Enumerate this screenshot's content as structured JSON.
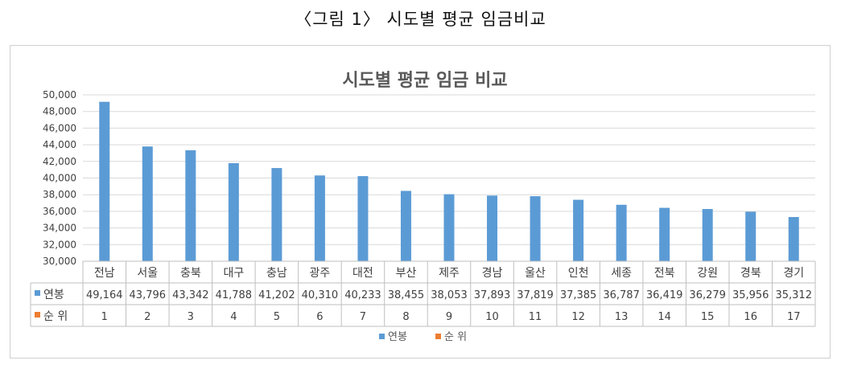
{
  "caption": "〈그림 1〉 시도별 평균 임금비교",
  "chart_data": {
    "type": "bar",
    "title": "시도별 평균 임금 비교",
    "categories": [
      "전남",
      "서울",
      "충북",
      "대구",
      "충남",
      "광주",
      "대전",
      "부산",
      "제주",
      "경남",
      "울산",
      "인천",
      "세종",
      "전북",
      "강원",
      "경북",
      "경기"
    ],
    "series": [
      {
        "name": "연봉",
        "values": [
          49164,
          43796,
          43342,
          41788,
          41202,
          40310,
          40233,
          38455,
          38053,
          37893,
          37819,
          37385,
          36787,
          36419,
          36279,
          35956,
          35312
        ],
        "color": "#5b9bd5"
      },
      {
        "name": "순 위",
        "values": [
          1,
          2,
          3,
          4,
          5,
          6,
          7,
          8,
          9,
          10,
          11,
          12,
          13,
          14,
          15,
          16,
          17
        ],
        "color": "#ed7d31"
      }
    ],
    "y_ticks": [
      "30,000",
      "32,000",
      "34,000",
      "36,000",
      "38,000",
      "40,000",
      "42,000",
      "44,000",
      "46,000",
      "48,000",
      "50,000"
    ],
    "ylim": [
      30000,
      50000
    ],
    "grid": true,
    "legend": "bottom",
    "data_table": true
  }
}
